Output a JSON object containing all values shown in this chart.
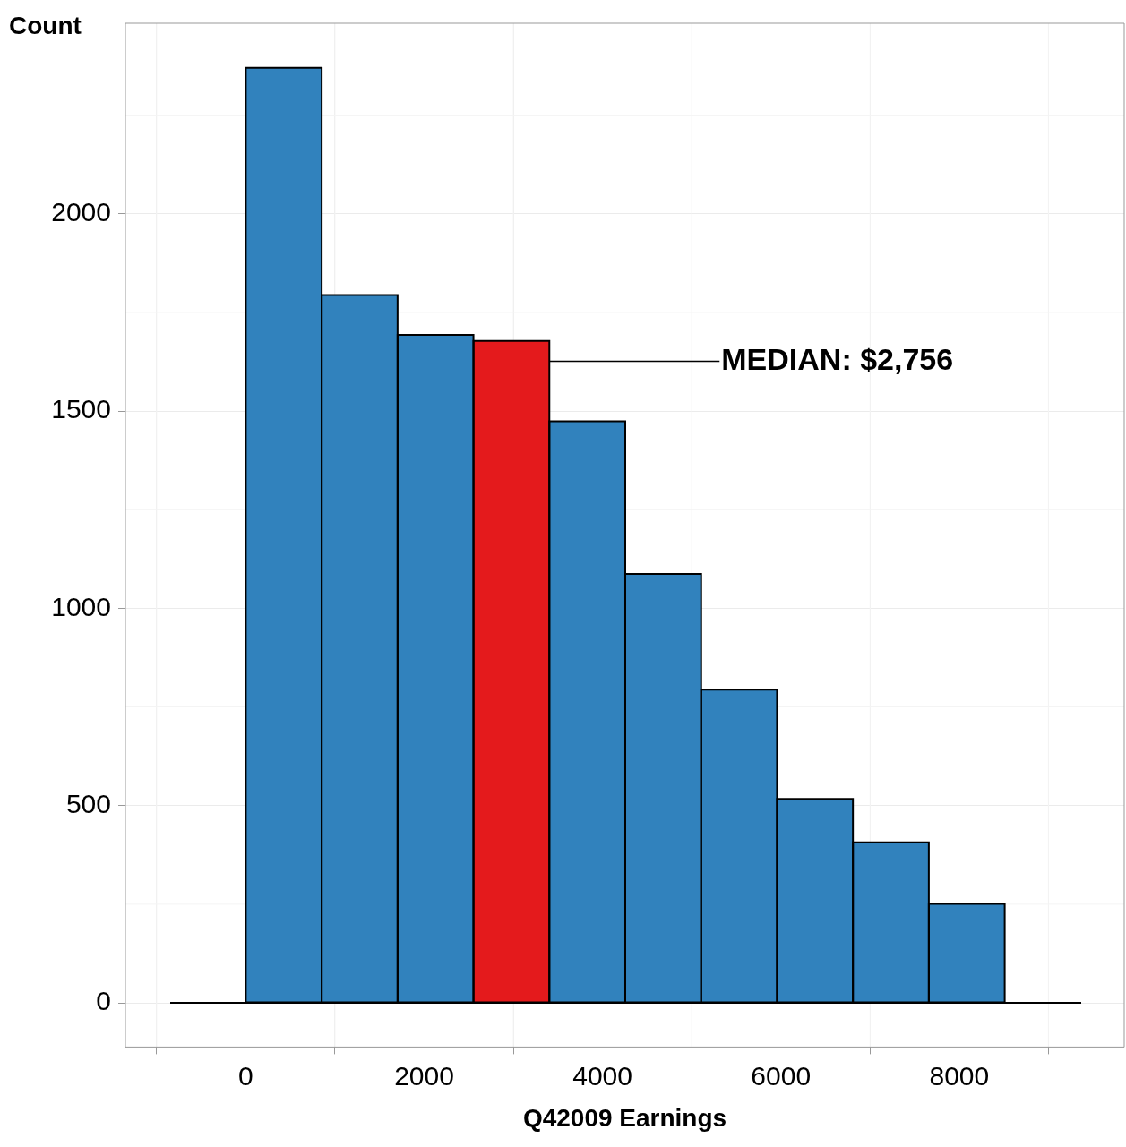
{
  "chart_data": {
    "type": "histogram",
    "xlabel": "Q42009 Earnings",
    "ylabel": "Count",
    "bins": [
      0,
      851,
      1702,
      2553,
      3404,
      4255,
      5106,
      5957,
      6808,
      7659,
      8510
    ],
    "values": [
      2370,
      1794,
      1693,
      1678,
      1474,
      1087,
      794,
      517,
      407,
      251
    ],
    "colors": [
      "#3182bd",
      "#3182bd",
      "#3182bd",
      "#e41a1c",
      "#3182bd",
      "#3182bd",
      "#3182bd",
      "#3182bd",
      "#3182bd",
      "#3182bd"
    ],
    "xlim": [
      -1350,
      9850
    ],
    "ylim": [
      -112,
      2483
    ],
    "xticks": [
      0,
      2000,
      4000,
      6000,
      8000
    ],
    "yticks": [
      0,
      500,
      1000,
      1500,
      2000
    ],
    "grid": true,
    "legend": false,
    "ref_lines": [
      {
        "axis": "y",
        "value": 0,
        "color": "#000000"
      }
    ],
    "annotations": [
      {
        "text": "MEDIAN: $2,756",
        "x": 3404,
        "y": 1626
      }
    ]
  }
}
